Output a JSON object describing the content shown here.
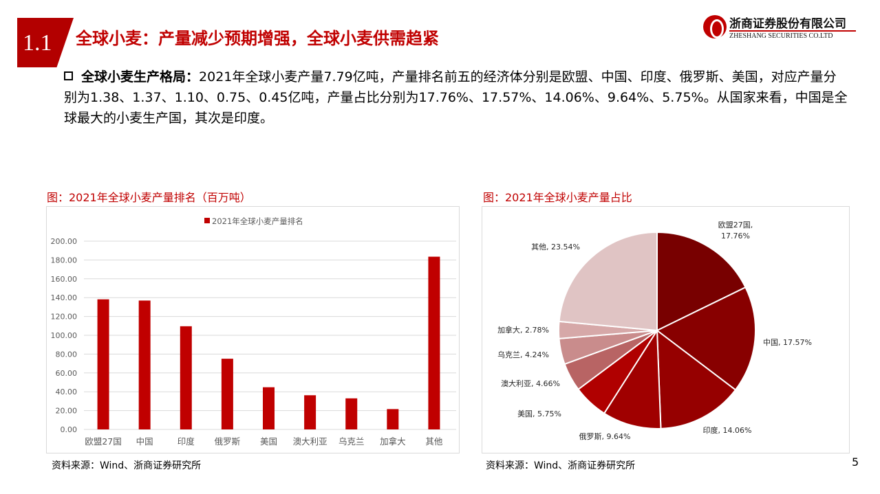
{
  "header": {
    "section_number": "1.1",
    "title": "全球小麦：产量减少预期增强，全球小麦供需趋紧",
    "logo": {
      "cn": "浙商证券股份有限公司",
      "en": "ZHESHANG SECURITIES CO.LTD"
    }
  },
  "bullet": {
    "lead": "全球小麦生产格局：",
    "text": "2021年全球小麦产量7.79亿吨，产量排名前五的经济体分别是欧盟、中国、印度、俄罗斯、美国，对应产量分别为1.38、1.37、1.10、0.75、0.45亿吨，产量占比分别为17.76%、17.57%、14.06%、9.64%、5.75%。从国家来看，中国是全球最大的小麦生产国，其次是印度。"
  },
  "left_caption": "图：2021年全球小麦产量排名（百万吨）",
  "right_caption": "图：2021年全球小麦产量占比",
  "left_source": "资料来源：Wind、浙商证券研究所",
  "right_source": "资料来源：Wind、浙商证券研究所",
  "page_number": "5",
  "chart_data": [
    {
      "type": "bar",
      "legend": "2021年全球小麦产量排名",
      "legend_position": "top",
      "categories": [
        "欧盟27国",
        "中国",
        "印度",
        "俄罗斯",
        "美国",
        "澳大利亚",
        "乌克兰",
        "加拿大",
        "其他"
      ],
      "values": [
        138.2,
        136.9,
        109.6,
        75.1,
        44.8,
        36.3,
        33.0,
        21.6,
        183.5
      ],
      "ylim": [
        0,
        200
      ],
      "yticks": [
        "0.00",
        "20.00",
        "40.00",
        "60.00",
        "80.00",
        "100.00",
        "120.00",
        "140.00",
        "160.00",
        "180.00",
        "200.00"
      ],
      "grid": true,
      "color": "#c00000"
    },
    {
      "type": "pie",
      "labels": [
        "欧盟27国",
        "中国",
        "印度",
        "俄罗斯",
        "美国",
        "澳大利亚",
        "乌克兰",
        "加拿大",
        "其他"
      ],
      "values": [
        17.76,
        17.57,
        14.06,
        9.64,
        5.75,
        4.66,
        4.24,
        2.78,
        23.54
      ],
      "value_labels": [
        "17.76%",
        "17.57%",
        "14.06%",
        "9.64%",
        "5.75%",
        "4.66%",
        "4.24%",
        "2.78%",
        "23.54%"
      ],
      "colors": [
        "#780000",
        "#880000",
        "#960000",
        "#a00000",
        "#b00000",
        "#b86464",
        "#c98c8c",
        "#d6a8a8",
        "#e0c4c4"
      ]
    }
  ]
}
